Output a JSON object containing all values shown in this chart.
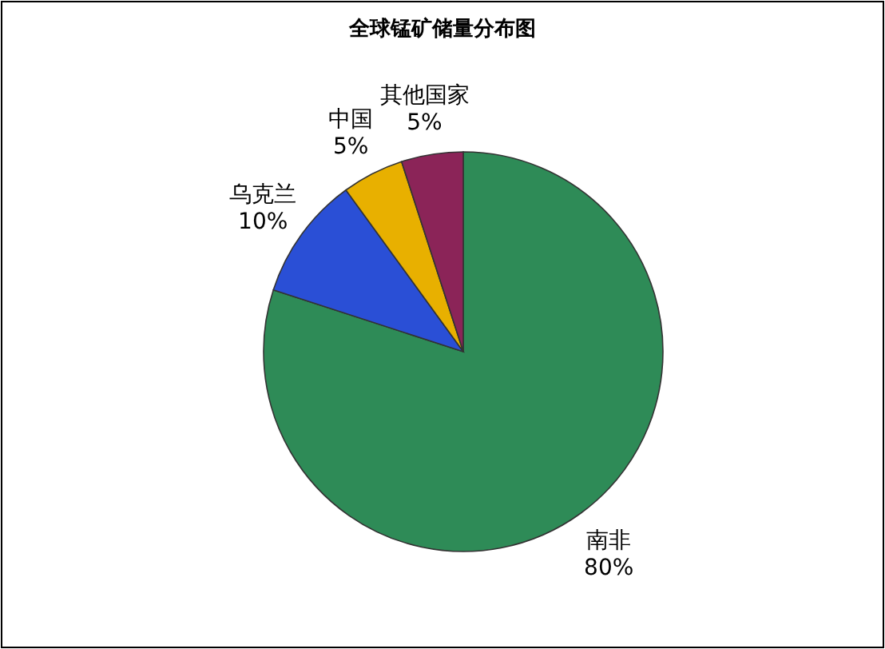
{
  "chart_data": {
    "type": "pie",
    "title": "全球锰矿储量分布图",
    "categories": [
      "南非",
      "乌克兰",
      "中国",
      "其他国家"
    ],
    "values": [
      80,
      10,
      5,
      5
    ],
    "colors": [
      "#2e8b57",
      "#2a4fd6",
      "#e8b000",
      "#8b2458"
    ],
    "value_labels": [
      "80%",
      "10%",
      "5%",
      "5%"
    ]
  }
}
